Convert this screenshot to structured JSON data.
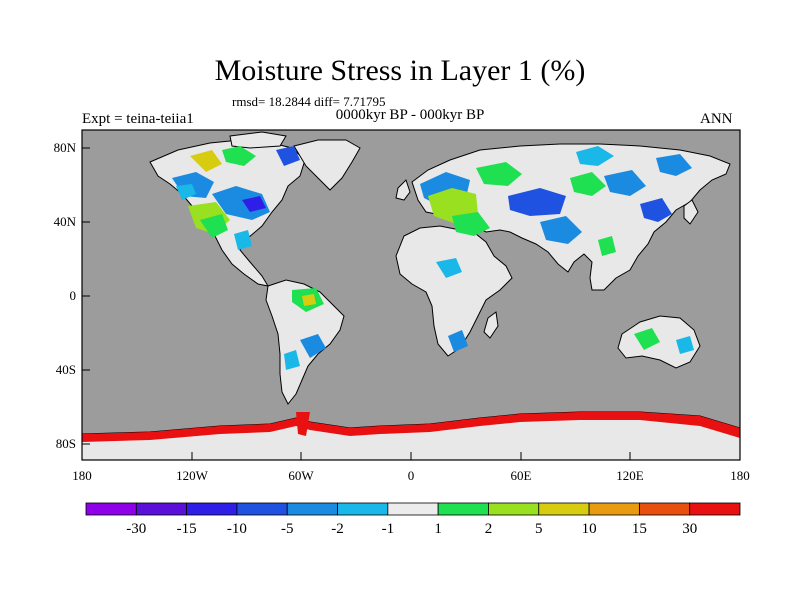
{
  "title": "Moisture Stress in Layer 1 (%)",
  "stats": "rmsd= 18.2844 diff= 7.71795",
  "period": "0000kyr BP - 000kyr BP",
  "experiment": "Expt = teina-teiia1",
  "season": "ANN",
  "colors": {
    "ocean": "#9c9c9c",
    "land": "#e8e8e8",
    "coast": "#000000"
  },
  "axes": {
    "lat_ticks": [
      "80N",
      "40N",
      "0",
      "40S",
      "80S"
    ],
    "lon_ticks": [
      "180",
      "120W",
      "60W",
      "0",
      "60E",
      "120E",
      "180"
    ]
  },
  "colorbar": {
    "labels": [
      "-30",
      "-15",
      "-10",
      "-5",
      "-2",
      "-1",
      "1",
      "2",
      "5",
      "10",
      "15",
      "30"
    ],
    "colors": [
      "#8f00e8",
      "#5a10d8",
      "#2f1ee8",
      "#1f52e0",
      "#1a8be0",
      "#19b8e8",
      "#ececec",
      "#1ee050",
      "#98e020",
      "#d8cc10",
      "#e89a10",
      "#e85010",
      "#e81010"
    ]
  }
}
